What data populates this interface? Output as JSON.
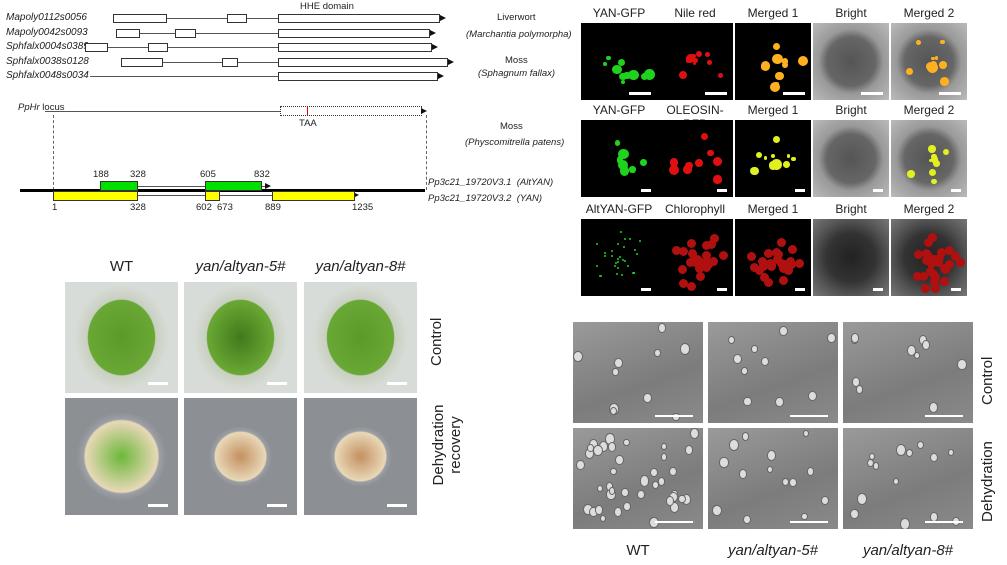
{
  "gene_diagram": {
    "hhe_label": "HHE domain",
    "genes": [
      "Mapoly0112s0056",
      "Mapoly0042s0093",
      "Sphfalx0004s0389",
      "Sphfalx0038s0128",
      "Sphfalx0048s0034"
    ],
    "species": [
      {
        "group": "Liverwort",
        "name": "(Marchantia polymorpha)"
      },
      {
        "group": "Moss",
        "name": "(Sphagnum fallax)"
      },
      {
        "group": "Moss",
        "name": "(Physcomitrella patens)"
      }
    ],
    "locus_italic": "PpHr",
    "locus_label": "locus",
    "stop_codon": "TAA",
    "transcripts": [
      {
        "id": "Pp3c21_19720V3.1",
        "name": "(AltYAN)"
      },
      {
        "id": "Pp3c21_19720V3.2",
        "name": "(YAN)"
      }
    ],
    "alt_positions": [
      "188",
      "328",
      "605",
      "832"
    ],
    "yan_positions": [
      "1",
      "328",
      "602",
      "673",
      "889",
      "1235"
    ],
    "colors": {
      "altyan": "#00e000",
      "yan": "#ffff00",
      "stop": "#e00000"
    }
  },
  "microscopy": {
    "rows": [
      [
        "YAN-GFP",
        "Nile red",
        "Merged 1",
        "Bright",
        "Merged 2"
      ],
      [
        "YAN-GFP",
        "OLEOSIN-RFP",
        "Merged 1",
        "Bright",
        "Merged 2"
      ],
      [
        "AltYAN-GFP",
        "Chlorophyll",
        "Merged 1",
        "Bright",
        "Merged 2"
      ]
    ]
  },
  "moss_phenotype": {
    "columns": [
      "WT",
      "yan/altyan-5#",
      "yan/altyan-8#"
    ],
    "rows": [
      "Control",
      "Dehydration recovery"
    ]
  },
  "sem": {
    "columns": [
      "WT",
      "yan/altyan-5#",
      "yan/altyan-8#"
    ],
    "rows": [
      "Control",
      "Dehydration"
    ]
  }
}
